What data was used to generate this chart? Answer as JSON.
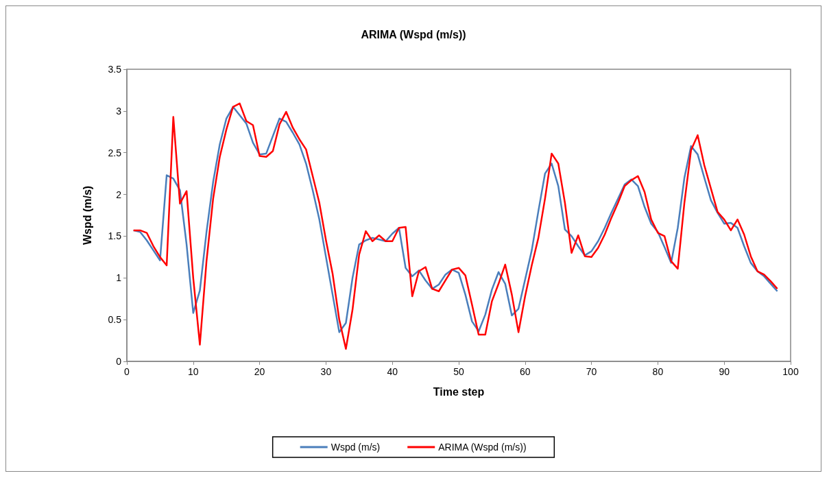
{
  "chart_data": {
    "type": "line",
    "title": "ARIMA (Wspd (m/s))",
    "xlabel": "Time step",
    "ylabel": "Wspd (m/s)",
    "x": [
      1,
      2,
      3,
      4,
      5,
      6,
      7,
      8,
      9,
      10,
      11,
      12,
      13,
      14,
      15,
      16,
      17,
      18,
      19,
      20,
      21,
      22,
      23,
      24,
      25,
      26,
      27,
      28,
      29,
      30,
      31,
      32,
      33,
      34,
      35,
      36,
      37,
      38,
      39,
      40,
      41,
      42,
      43,
      44,
      45,
      46,
      47,
      48,
      49,
      50,
      51,
      52,
      53,
      54,
      55,
      56,
      57,
      58,
      59,
      60,
      61,
      62,
      63,
      64,
      65,
      66,
      67,
      68,
      69,
      70,
      71,
      72,
      73,
      74,
      75,
      76,
      77,
      78,
      79,
      80,
      81,
      82,
      83,
      84,
      85,
      86,
      87,
      88,
      89,
      90,
      91,
      92,
      93,
      94,
      95,
      96,
      97,
      98
    ],
    "series": [
      {
        "name": "Wspd (m/s)",
        "color": "#4a7ebb",
        "values": [
          1.57,
          1.55,
          1.45,
          1.33,
          1.21,
          2.23,
          2.19,
          2.05,
          1.4,
          0.58,
          0.85,
          1.55,
          2.15,
          2.6,
          2.91,
          3.05,
          2.95,
          2.85,
          2.62,
          2.48,
          2.49,
          2.7,
          2.91,
          2.87,
          2.74,
          2.6,
          2.37,
          2.05,
          1.7,
          1.25,
          0.8,
          0.35,
          0.46,
          1.0,
          1.4,
          1.45,
          1.48,
          1.46,
          1.44,
          1.53,
          1.6,
          1.12,
          1.02,
          1.09,
          0.97,
          0.87,
          0.92,
          1.04,
          1.1,
          1.06,
          0.8,
          0.48,
          0.36,
          0.56,
          0.86,
          1.07,
          0.93,
          0.55,
          0.63,
          0.98,
          1.33,
          1.8,
          2.25,
          2.37,
          2.1,
          1.58,
          1.5,
          1.38,
          1.27,
          1.32,
          1.44,
          1.6,
          1.78,
          1.95,
          2.12,
          2.18,
          2.1,
          1.85,
          1.65,
          1.55,
          1.37,
          1.18,
          1.6,
          2.2,
          2.58,
          2.48,
          2.2,
          1.93,
          1.78,
          1.65,
          1.66,
          1.6,
          1.38,
          1.18,
          1.08,
          1.02,
          0.93,
          0.84
        ]
      },
      {
        "name": "ARIMA (Wspd (m/s))",
        "color": "#ff0000",
        "values": [
          1.57,
          1.57,
          1.54,
          1.38,
          1.25,
          1.15,
          2.93,
          1.89,
          2.04,
          1.0,
          0.2,
          1.2,
          1.95,
          2.45,
          2.78,
          3.05,
          3.09,
          2.88,
          2.83,
          2.46,
          2.45,
          2.52,
          2.84,
          2.99,
          2.8,
          2.66,
          2.54,
          2.22,
          1.9,
          1.45,
          1.05,
          0.5,
          0.15,
          0.62,
          1.28,
          1.56,
          1.44,
          1.51,
          1.44,
          1.44,
          1.6,
          1.61,
          0.78,
          1.08,
          1.13,
          0.87,
          0.84,
          0.97,
          1.1,
          1.12,
          1.03,
          0.68,
          0.32,
          0.32,
          0.72,
          0.93,
          1.16,
          0.8,
          0.35,
          0.78,
          1.15,
          1.48,
          1.95,
          2.49,
          2.37,
          1.9,
          1.3,
          1.51,
          1.26,
          1.25,
          1.36,
          1.52,
          1.72,
          1.9,
          2.1,
          2.17,
          2.22,
          2.03,
          1.7,
          1.54,
          1.5,
          1.2,
          1.11,
          1.9,
          2.53,
          2.71,
          2.35,
          2.07,
          1.79,
          1.7,
          1.57,
          1.7,
          1.52,
          1.26,
          1.08,
          1.04,
          0.96,
          0.87
        ]
      }
    ],
    "xlim": [
      0,
      100
    ],
    "xticks": [
      0,
      10,
      20,
      30,
      40,
      50,
      60,
      70,
      80,
      90,
      100
    ],
    "ylim": [
      0,
      3.5
    ],
    "yticks": [
      0,
      0.5,
      1,
      1.5,
      2,
      2.5,
      3,
      3.5
    ],
    "grid": false,
    "legend": "bottom",
    "marker": "none",
    "line_style": "solid"
  }
}
